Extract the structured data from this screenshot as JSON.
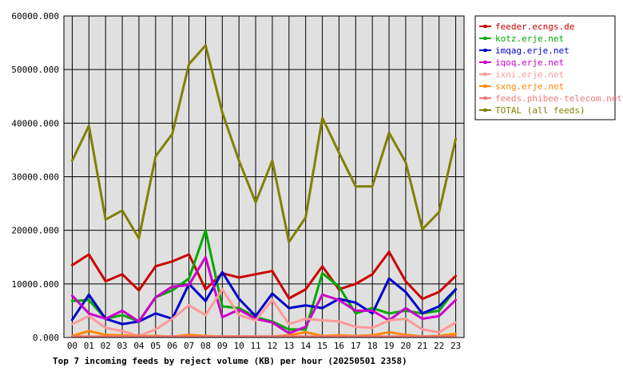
{
  "chart_data": {
    "type": "line",
    "title": "Top 7 incoming feeds by reject volume (KB) per hour (20250501 2358)",
    "xlabel": "",
    "ylabel": "",
    "grid": true,
    "legend_position": "top-right",
    "background": "#e0e0e0",
    "ylim": [
      0,
      60000
    ],
    "yticks": [
      "0.000",
      "10000.000",
      "20000.000",
      "30000.000",
      "40000.000",
      "50000.000",
      "60000.000"
    ],
    "categories": [
      "00",
      "01",
      "02",
      "03",
      "04",
      "05",
      "06",
      "07",
      "08",
      "09",
      "10",
      "11",
      "12",
      "13",
      "14",
      "15",
      "16",
      "17",
      "18",
      "19",
      "20",
      "21",
      "22",
      "23"
    ],
    "series": [
      {
        "name": "feeder.ecngs.de",
        "color": "#cc0000",
        "values": [
          13500,
          15500,
          10500,
          11800,
          8800,
          13300,
          14200,
          15500,
          9000,
          12000,
          11200,
          11800,
          12400,
          7300,
          9000,
          13300,
          9000,
          10000,
          11800,
          16000,
          10500,
          7200,
          8500,
          11500
        ]
      },
      {
        "name": "kotz.erje.net",
        "color": "#00aa00",
        "values": [
          6800,
          7000,
          3500,
          4200,
          3000,
          7500,
          8800,
          11000,
          20000,
          5800,
          5500,
          3800,
          3000,
          1500,
          1500,
          12000,
          9500,
          4500,
          5500,
          4500,
          5000,
          4500,
          5000,
          9000
        ]
      },
      {
        "name": "imqag.erje.net",
        "color": "#0000cc",
        "values": [
          3300,
          8000,
          3500,
          2500,
          3000,
          4500,
          3500,
          10000,
          6800,
          12200,
          7200,
          4000,
          8200,
          5500,
          6000,
          5500,
          7200,
          6500,
          4500,
          11000,
          8500,
          4500,
          5800,
          9000
        ]
      },
      {
        "name": "iqoq.erje.net",
        "color": "#cc00cc",
        "values": [
          7800,
          4500,
          3500,
          5000,
          3000,
          7500,
          9500,
          9800,
          15000,
          3800,
          5200,
          3500,
          2800,
          800,
          2000,
          8000,
          7000,
          5000,
          5000,
          3200,
          5500,
          3500,
          4000,
          7000
        ]
      },
      {
        "name": "ixni.erje.net",
        "color": "#ff9999",
        "values": [
          2500,
          4000,
          1800,
          1200,
          300,
          1500,
          3500,
          6000,
          4200,
          9000,
          4200,
          3200,
          7000,
          2500,
          3500,
          3200,
          3000,
          2000,
          1800,
          3200,
          3500,
          1500,
          1000,
          2800
        ]
      },
      {
        "name": "sxng.erje.net",
        "color": "#ff8800",
        "values": [
          300,
          1200,
          500,
          400,
          250,
          300,
          150,
          500,
          300,
          200,
          200,
          150,
          200,
          400,
          1000,
          300,
          400,
          300,
          400,
          1000,
          500,
          200,
          300,
          700
        ]
      },
      {
        "name": "feeds.phibee-telecom.net",
        "color": "#ee7777",
        "values": [
          200,
          200,
          200,
          200,
          200,
          200,
          200,
          200,
          200,
          200,
          200,
          200,
          200,
          200,
          200,
          200,
          200,
          200,
          200,
          200,
          200,
          200,
          200,
          200
        ]
      },
      {
        "name": "TOTAL (all feeds)",
        "color": "#808000",
        "values": [
          33000,
          39500,
          22000,
          23700,
          18500,
          33800,
          38000,
          51000,
          54500,
          42000,
          33000,
          25200,
          33000,
          17800,
          22400,
          41000,
          34500,
          28200,
          28200,
          38200,
          32700,
          20200,
          23400,
          37100
        ]
      }
    ]
  }
}
